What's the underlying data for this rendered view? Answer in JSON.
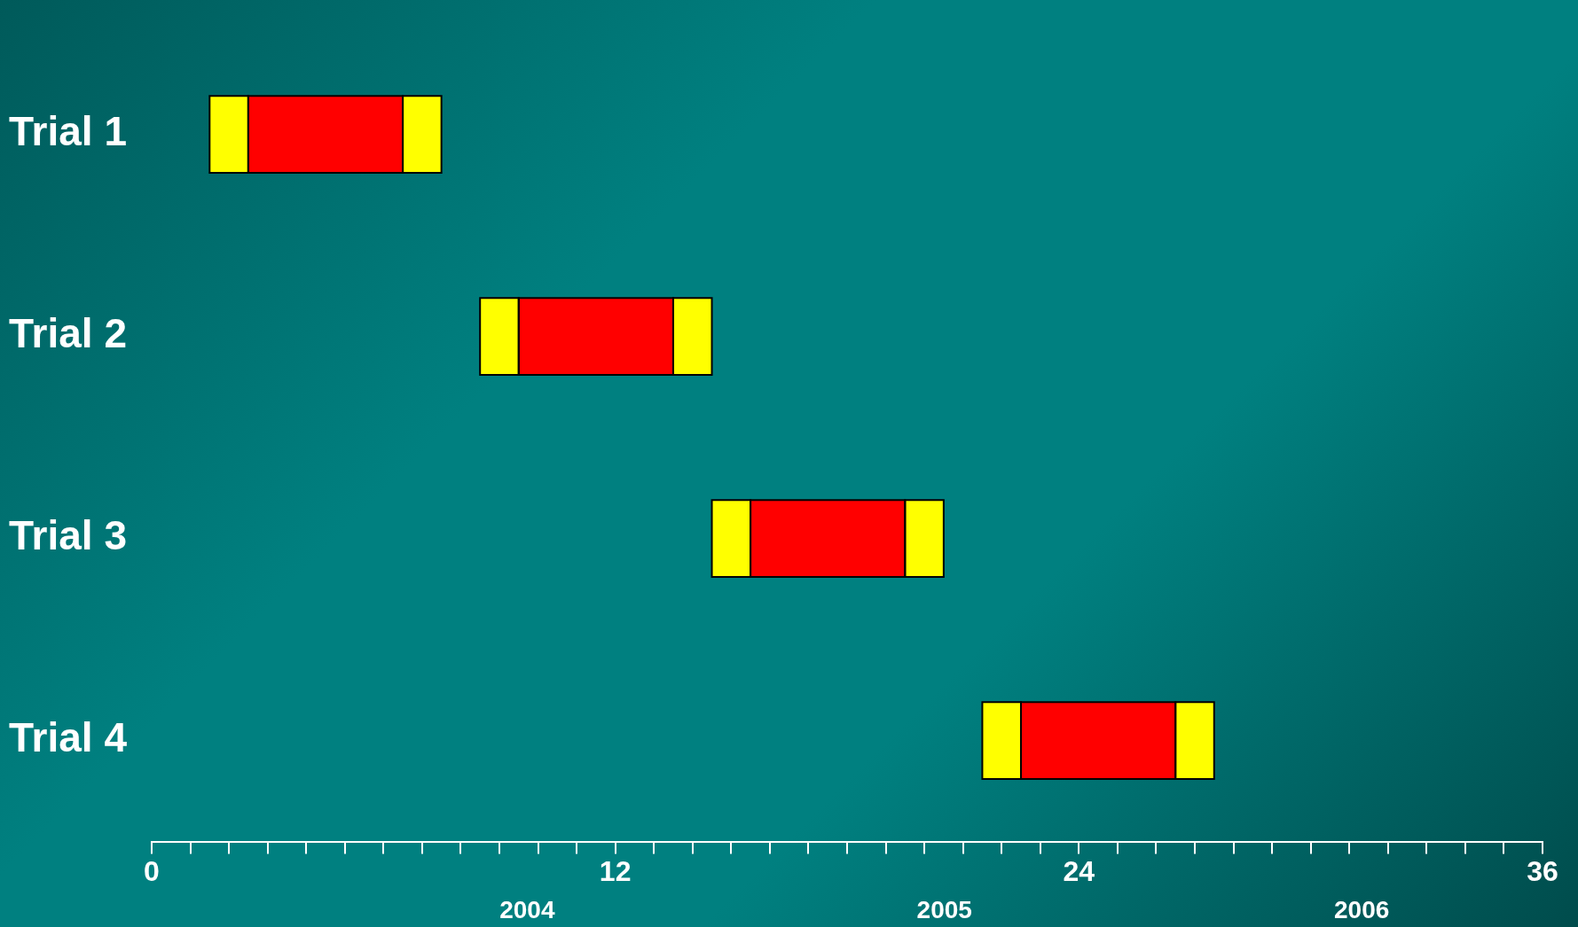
{
  "chart_data": {
    "type": "bar",
    "orientation": "horizontal",
    "categories": [
      "Trial 1",
      "Trial 2",
      "Trial 3",
      "Trial 4"
    ],
    "series": [
      {
        "color": "#ffff00",
        "base": [
          1.5,
          8.5,
          14.5,
          21.5
        ],
        "values": [
          1,
          1,
          1,
          1
        ]
      },
      {
        "color": "#ff0000",
        "base": [
          2.5,
          9.5,
          15.5,
          22.5
        ],
        "values": [
          4,
          4,
          4,
          4
        ]
      },
      {
        "color": "#ffff00",
        "base": [
          6.5,
          13.5,
          19.5,
          26.5
        ],
        "values": [
          1,
          1,
          1,
          1
        ]
      }
    ],
    "xlim": [
      0,
      36
    ],
    "xticks": [
      0,
      {
        "value": 1,
        "label": null
      },
      {
        "value": 2,
        "label": null
      },
      {
        "value": 3,
        "label": null
      },
      {
        "value": 4,
        "label": null
      },
      {
        "value": 5,
        "label": null
      },
      {
        "value": 6,
        "label": null
      },
      {
        "value": 7,
        "label": null
      },
      {
        "value": 8,
        "label": null
      },
      {
        "value": 9,
        "label": null
      },
      {
        "value": 10,
        "label": null
      },
      {
        "value": 11,
        "label": null
      },
      12,
      {
        "value": 13,
        "label": null
      },
      {
        "value": 14,
        "label": null
      },
      {
        "value": 15,
        "label": null
      },
      {
        "value": 16,
        "label": null
      },
      {
        "value": 17,
        "label": null
      },
      {
        "value": 18,
        "label": null
      },
      {
        "value": 19,
        "label": null
      },
      {
        "value": 20,
        "label": null
      },
      {
        "value": 21,
        "label": null
      },
      {
        "value": 22,
        "label": null
      },
      {
        "value": 23,
        "label": null
      },
      24,
      {
        "value": 25,
        "label": null
      },
      {
        "value": 26,
        "label": null
      },
      {
        "value": 27,
        "label": null
      },
      {
        "value": 28,
        "label": null
      },
      {
        "value": 29,
        "label": null
      },
      {
        "value": 30,
        "label": null
      },
      {
        "value": 31,
        "label": null
      },
      {
        "value": 32,
        "label": null
      },
      {
        "value": 33,
        "label": null
      },
      {
        "value": 34,
        "label": null
      },
      {
        "value": 35,
        "label": null
      },
      36
    ],
    "annotations": [
      "2004",
      "2005",
      "2006"
    ],
    "grid": false,
    "legend": false
  }
}
